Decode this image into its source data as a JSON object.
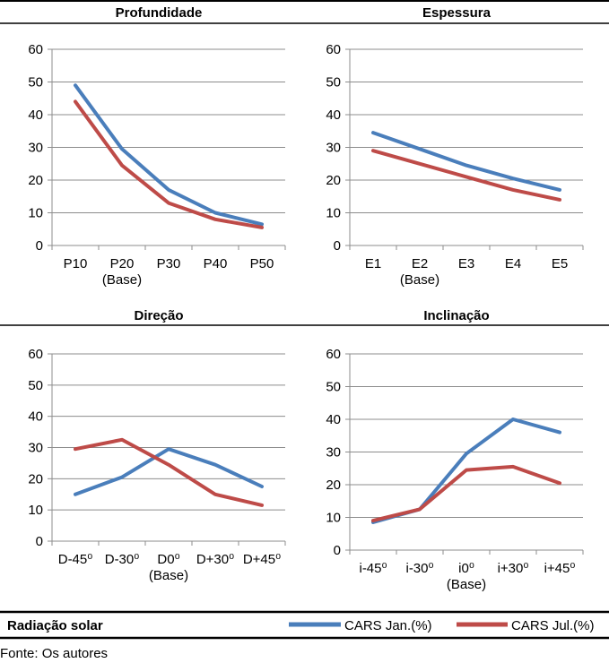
{
  "footer_label": "Radiação solar",
  "source": "Fonte: Os autores",
  "colors": {
    "jan": "#4a7ebb",
    "jul": "#be4b48",
    "grid": "#8c8c8c",
    "axis": "#8c8c8c"
  },
  "legend": [
    "CARS Jan.(%)",
    "CARS Jul.(%)"
  ],
  "chart_data": [
    {
      "type": "line",
      "title": "Profundidade",
      "categories": [
        "P10",
        "P20",
        "P30",
        "P40",
        "P50"
      ],
      "base_label": "(Base)",
      "base_index": 1,
      "ylim": [
        0,
        60
      ],
      "yticks": [
        0,
        10,
        20,
        30,
        40,
        50,
        60
      ],
      "grid": true,
      "legend_position": "bottom-right",
      "series": [
        {
          "name": "CARS Jan.(%)",
          "values": [
            49,
            29.5,
            17,
            10,
            6.5
          ]
        },
        {
          "name": "CARS Jul.(%)",
          "values": [
            44,
            24.5,
            13,
            8,
            5.5
          ]
        }
      ]
    },
    {
      "type": "line",
      "title": "Espessura",
      "categories": [
        "E1",
        "E2",
        "E3",
        "E4",
        "E5"
      ],
      "base_label": "(Base)",
      "base_index": 1,
      "ylim": [
        0,
        60
      ],
      "yticks": [
        0,
        10,
        20,
        30,
        40,
        50,
        60
      ],
      "grid": true,
      "series": [
        {
          "name": "CARS Jan.(%)",
          "values": [
            34.5,
            29.5,
            24.5,
            20.5,
            17
          ]
        },
        {
          "name": "CARS Jul.(%)",
          "values": [
            29,
            25,
            21,
            17,
            14
          ]
        }
      ]
    },
    {
      "type": "line",
      "title": "Direção",
      "categories": [
        "D-45⁰",
        "D-30⁰",
        "D0⁰",
        "D+30⁰",
        "D+45⁰"
      ],
      "base_label": "(Base)",
      "base_index": 2,
      "ylim": [
        0,
        60
      ],
      "yticks": [
        0,
        10,
        20,
        30,
        40,
        50,
        60
      ],
      "grid": true,
      "series": [
        {
          "name": "CARS Jan.(%)",
          "values": [
            15,
            20.5,
            29.5,
            24.5,
            17.5
          ]
        },
        {
          "name": "CARS Jul.(%)",
          "values": [
            29.5,
            32.5,
            24.5,
            15,
            11.5
          ]
        }
      ]
    },
    {
      "type": "line",
      "title": "Inclinação",
      "categories": [
        "i-45⁰",
        "i-30⁰",
        "i0⁰",
        "i+30⁰",
        "i+45⁰"
      ],
      "base_label": "(Base)",
      "base_index": 2,
      "ylim": [
        0,
        60
      ],
      "yticks": [
        0,
        10,
        20,
        30,
        40,
        50,
        60
      ],
      "grid": true,
      "series": [
        {
          "name": "CARS Jan.(%)",
          "values": [
            8.5,
            12.5,
            29.5,
            40,
            36
          ]
        },
        {
          "name": "CARS Jul.(%)",
          "values": [
            9,
            12.5,
            24.5,
            25.5,
            20.5
          ]
        }
      ]
    }
  ]
}
